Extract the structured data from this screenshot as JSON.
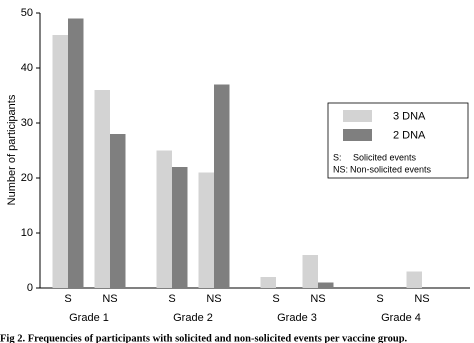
{
  "chart_data": {
    "type": "bar",
    "y_label": "Number of participants",
    "categories": [
      "S",
      "NS",
      "S",
      "NS",
      "S",
      "NS",
      "S",
      "NS"
    ],
    "groups": [
      "Grade 1",
      "Grade 2",
      "Grade 3",
      "Grade 4"
    ],
    "series": [
      {
        "name": "3 DNA",
        "color": "#d3d3d3",
        "values": [
          46,
          36,
          25,
          21,
          2,
          6,
          0,
          3
        ]
      },
      {
        "name": "2 DNA",
        "color": "#7f7f7f",
        "values": [
          49,
          28,
          22,
          37,
          0,
          1,
          0,
          0
        ]
      }
    ],
    "legend_notes": [
      {
        "key": "S:",
        "text": "Solicited events"
      },
      {
        "key": "NS:",
        "text": "Non-solicited events"
      }
    ],
    "ylim": [
      0,
      50
    ],
    "yticks": [
      0,
      10,
      20,
      30,
      40,
      50
    ],
    "legend_position": "right",
    "caption": "Fig 2. Frequencies of participants with solicited and non-solicited events per vaccine group."
  }
}
